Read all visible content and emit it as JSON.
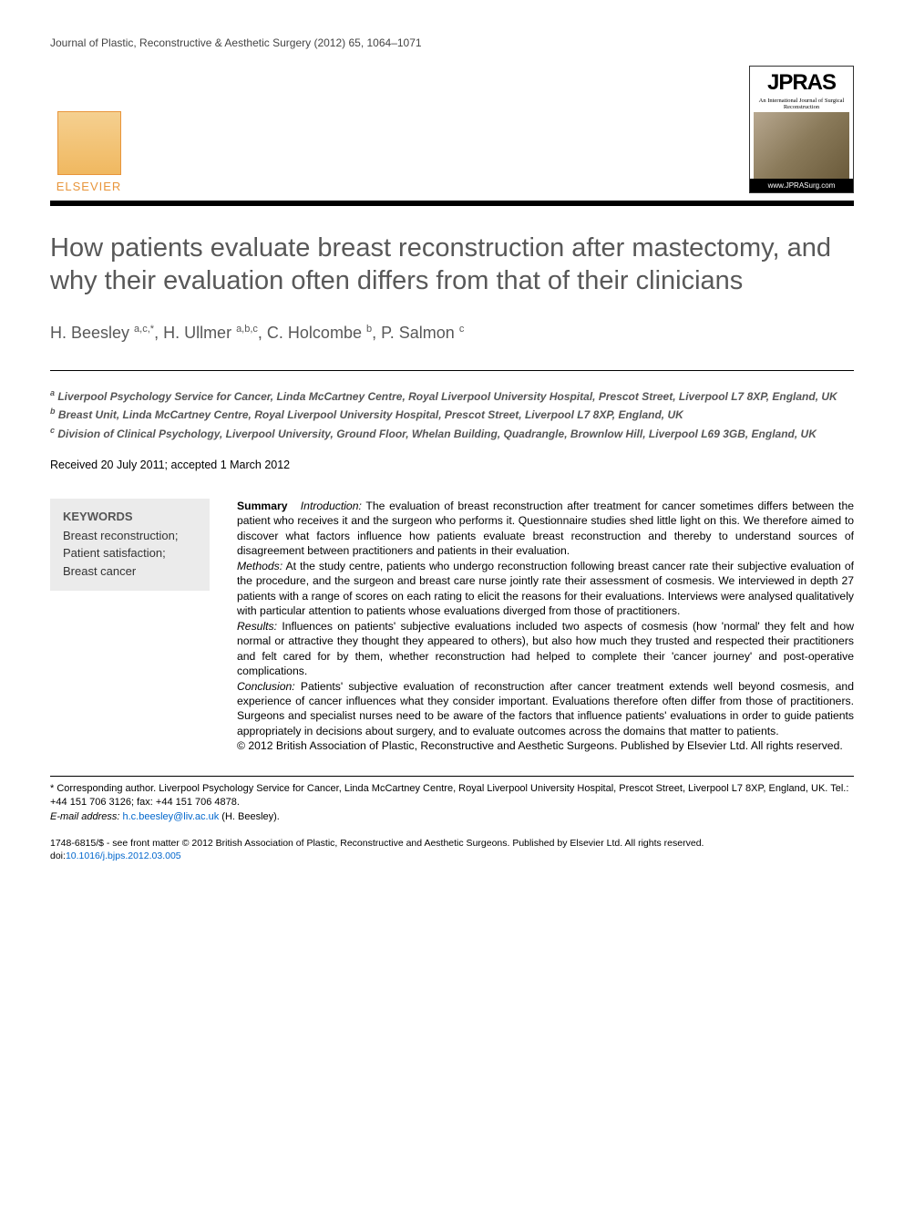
{
  "journal_ref": "Journal of Plastic, Reconstructive & Aesthetic Surgery (2012) 65, 1064–1071",
  "publisher_logo": {
    "name": "ELSEVIER"
  },
  "journal_logo": {
    "acronym": "JPRAS",
    "subtitle": "An International Journal of Surgical Reconstruction",
    "url": "www.JPRASurg.com"
  },
  "title": "How patients evaluate breast reconstruction after mastectomy, and why their evaluation often differs from that of their clinicians",
  "authors_html": "H. Beesley <sup>a,c,*</sup>, H. Ullmer <sup>a,b,c</sup>, C. Holcombe <sup>b</sup>, P. Salmon <sup>c</sup>",
  "affiliations": [
    {
      "sup": "a",
      "text": "Liverpool Psychology Service for Cancer, Linda McCartney Centre, Royal Liverpool University Hospital, Prescot Street, Liverpool L7 8XP, England, UK"
    },
    {
      "sup": "b",
      "text": "Breast Unit, Linda McCartney Centre, Royal Liverpool University Hospital, Prescot Street, Liverpool L7 8XP, England, UK"
    },
    {
      "sup": "c",
      "text": "Division of Clinical Psychology, Liverpool University, Ground Floor, Whelan Building, Quadrangle, Brownlow Hill, Liverpool L69 3GB, England, UK"
    }
  ],
  "dates": "Received 20 July 2011; accepted 1 March 2012",
  "keywords": {
    "heading": "KEYWORDS",
    "items": "Breast reconstruction;\nPatient satisfaction;\nBreast cancer"
  },
  "summary": {
    "label": "Summary",
    "sections": [
      {
        "heading": "Introduction:",
        "body": "The evaluation of breast reconstruction after treatment for cancer sometimes differs between the patient who receives it and the surgeon who performs it. Questionnaire studies shed little light on this. We therefore aimed to discover what factors influence how patients evaluate breast reconstruction and thereby to understand sources of disagreement between practitioners and patients in their evaluation."
      },
      {
        "heading": "Methods:",
        "body": "At the study centre, patients who undergo reconstruction following breast cancer rate their subjective evaluation of the procedure, and the surgeon and breast care nurse jointly rate their assessment of cosmesis. We interviewed in depth 27 patients with a range of scores on each rating to elicit the reasons for their evaluations. Interviews were analysed qualitatively with particular attention to patients whose evaluations diverged from those of practitioners."
      },
      {
        "heading": "Results:",
        "body": "Influences on patients' subjective evaluations included two aspects of cosmesis (how 'normal' they felt and how normal or attractive they thought they appeared to others), but also how much they trusted and respected their practitioners and felt cared for by them, whether reconstruction had helped to complete their 'cancer journey' and post-operative complications."
      },
      {
        "heading": "Conclusion:",
        "body": "Patients' subjective evaluation of reconstruction after cancer treatment extends well beyond cosmesis, and experience of cancer influences what they consider important. Evaluations therefore often differ from those of practitioners. Surgeons and specialist nurses need to be aware of the factors that influence patients' evaluations in order to guide patients appropriately in decisions about surgery, and to evaluate outcomes across the domains that matter to patients."
      }
    ],
    "copyright": "© 2012 British Association of Plastic, Reconstructive and Aesthetic Surgeons. Published by Elsevier Ltd. All rights reserved."
  },
  "corresponding": {
    "text": "* Corresponding author. Liverpool Psychology Service for Cancer, Linda McCartney Centre, Royal Liverpool University Hospital, Prescot Street, Liverpool L7 8XP, England, UK. Tel.: +44 151 706 3126; fax: +44 151 706 4878.",
    "email_label": "E-mail address:",
    "email": "h.c.beesley@liv.ac.uk",
    "email_suffix": "(H. Beesley)."
  },
  "footer_copyright": {
    "issn": "1748-6815/$ - see front matter © 2012 British Association of Plastic, Reconstructive and Aesthetic Surgeons. Published by Elsevier Ltd. All rights reserved.",
    "doi_label": "doi:",
    "doi": "10.1016/j.bjps.2012.03.005"
  }
}
